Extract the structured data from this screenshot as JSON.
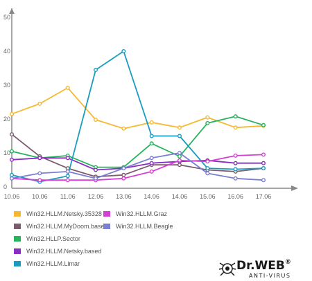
{
  "chart_data": {
    "type": "line",
    "title": "",
    "xlabel": "",
    "ylabel": "",
    "categories": [
      "10.06",
      "10.06",
      "11.06",
      "12.06",
      "13.06",
      "14.06",
      "14.06",
      "15.06",
      "16.06",
      "17.06"
    ],
    "yticks": [
      0,
      10,
      20,
      30,
      40,
      50
    ],
    "ylim": [
      0,
      50
    ],
    "grid": false,
    "legend_position": "bottom-left",
    "series": [
      {
        "name": "Win32.HLLM.Netsky.35328",
        "color": "#f5b82e",
        "values": [
          21.5,
          24.5,
          29.2,
          19.8,
          17.2,
          19.0,
          17.5,
          20.5,
          17.5,
          18.0
        ]
      },
      {
        "name": "Win32.HLLM.MyDoom.based",
        "color": "#7b5b6e",
        "values": [
          15.5,
          9.0,
          5.5,
          3.0,
          3.5,
          6.5,
          6.5,
          5.0,
          4.5,
          5.5
        ]
      },
      {
        "name": "Win32.HLLP.Sector",
        "color": "#26b35a",
        "values": [
          10.5,
          8.5,
          9.2,
          5.8,
          5.8,
          12.8,
          9.0,
          18.8,
          20.8,
          18.2
        ]
      },
      {
        "name": "Win32.HLLM.Netsky.based",
        "color": "#8a2dc2",
        "values": [
          8.0,
          8.5,
          8.5,
          5.0,
          5.5,
          7.0,
          7.5,
          7.8,
          7.0,
          7.0
        ]
      },
      {
        "name": "Win32.HLLM.Limar",
        "color": "#1a9bbf",
        "values": [
          3.5,
          1.5,
          3.2,
          34.5,
          40.0,
          15.0,
          15.0,
          5.5,
          5.2,
          5.5
        ]
      },
      {
        "name": "Win32.HLLM.Graz",
        "color": "#d63fd6",
        "values": [
          2.5,
          2.0,
          2.0,
          2.0,
          2.5,
          4.5,
          7.8,
          7.5,
          9.2,
          9.5
        ]
      },
      {
        "name": "Win32.HLLM.Beagle",
        "color": "#7a7fd1",
        "values": [
          2.5,
          4.0,
          4.5,
          2.5,
          5.5,
          8.5,
          10.0,
          4.0,
          2.5,
          2.0
        ]
      }
    ]
  },
  "legend": {
    "items": [
      {
        "label": "Win32.HLLM.Netsky.35328",
        "color": "#f5b82e"
      },
      {
        "label": "Win32.HLLM.Graz",
        "color": "#d63fd6"
      },
      {
        "label": "Win32.HLLM.MyDoom.based",
        "color": "#7b5b6e"
      },
      {
        "label": "Win32.HLLM.Beagle",
        "color": "#7a7fd1"
      },
      {
        "label": "Win32.HLLP.Sector",
        "color": "#26b35a"
      },
      {
        "label": "Win32.HLLM.Netsky.based",
        "color": "#8a2dc2"
      },
      {
        "label": "Win32.HLLM.Limar",
        "color": "#1a9bbf"
      }
    ]
  },
  "logo": {
    "name": "Dr.WEB",
    "registered_mark": "®",
    "tagline": "ANTI-VIRUS",
    "icon": "spider-icon"
  }
}
